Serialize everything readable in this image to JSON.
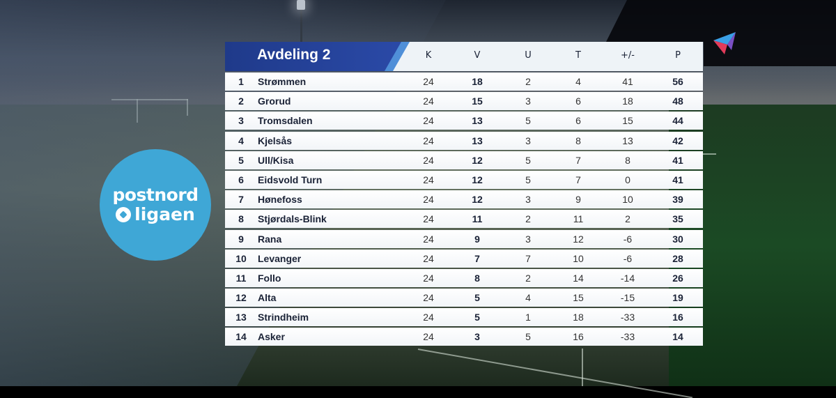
{
  "table": {
    "title": "Avdeling 2",
    "columns": [
      "K",
      "V",
      "U",
      "T",
      "+/-",
      "P"
    ],
    "rows": [
      {
        "rank": "1",
        "team": "Strømmen",
        "k": "24",
        "v": "18",
        "u": "2",
        "t": "4",
        "diff": "41",
        "p": "56"
      },
      {
        "rank": "2",
        "team": "Grorud",
        "k": "24",
        "v": "15",
        "u": "3",
        "t": "6",
        "diff": "18",
        "p": "48"
      },
      {
        "rank": "3",
        "team": "Tromsdalen",
        "k": "24",
        "v": "13",
        "u": "5",
        "t": "6",
        "diff": "15",
        "p": "44"
      },
      {
        "rank": "4",
        "team": "Kjelsås",
        "k": "24",
        "v": "13",
        "u": "3",
        "t": "8",
        "diff": "13",
        "p": "42"
      },
      {
        "rank": "5",
        "team": "Ull/Kisa",
        "k": "24",
        "v": "12",
        "u": "5",
        "t": "7",
        "diff": "8",
        "p": "41"
      },
      {
        "rank": "6",
        "team": "Eidsvold Turn",
        "k": "24",
        "v": "12",
        "u": "5",
        "t": "7",
        "diff": "0",
        "p": "41"
      },
      {
        "rank": "7",
        "team": "Hønefoss",
        "k": "24",
        "v": "12",
        "u": "3",
        "t": "9",
        "diff": "10",
        "p": "39"
      },
      {
        "rank": "8",
        "team": "Stjørdals-Blink",
        "k": "24",
        "v": "11",
        "u": "2",
        "t": "11",
        "diff": "2",
        "p": "35"
      },
      {
        "rank": "9",
        "team": "Rana",
        "k": "24",
        "v": "9",
        "u": "3",
        "t": "12",
        "diff": "-6",
        "p": "30"
      },
      {
        "rank": "10",
        "team": "Levanger",
        "k": "24",
        "v": "7",
        "u": "7",
        "t": "10",
        "diff": "-6",
        "p": "28"
      },
      {
        "rank": "11",
        "team": "Follo",
        "k": "24",
        "v": "8",
        "u": "2",
        "t": "14",
        "diff": "-14",
        "p": "26"
      },
      {
        "rank": "12",
        "team": "Alta",
        "k": "24",
        "v": "5",
        "u": "4",
        "t": "15",
        "diff": "-15",
        "p": "19"
      },
      {
        "rank": "13",
        "team": "Strindheim",
        "k": "24",
        "v": "5",
        "u": "1",
        "t": "18",
        "diff": "-33",
        "p": "16"
      },
      {
        "rank": "14",
        "team": "Asker",
        "k": "24",
        "v": "3",
        "u": "5",
        "t": "16",
        "diff": "-33",
        "p": "14"
      }
    ]
  },
  "league_logo": {
    "line1": "postnord",
    "line2": "ligaen",
    "color": "#3fa7d6",
    "icon": "football-icon"
  },
  "channel_logo": {
    "icon": "channel-logo-icon",
    "colors": [
      "#3aa0e6",
      "#e23b5a"
    ]
  },
  "colors": {
    "header_blue": "#1f3a8a",
    "header_accent": "#4f8fd8",
    "text_dark": "#1a2236"
  }
}
